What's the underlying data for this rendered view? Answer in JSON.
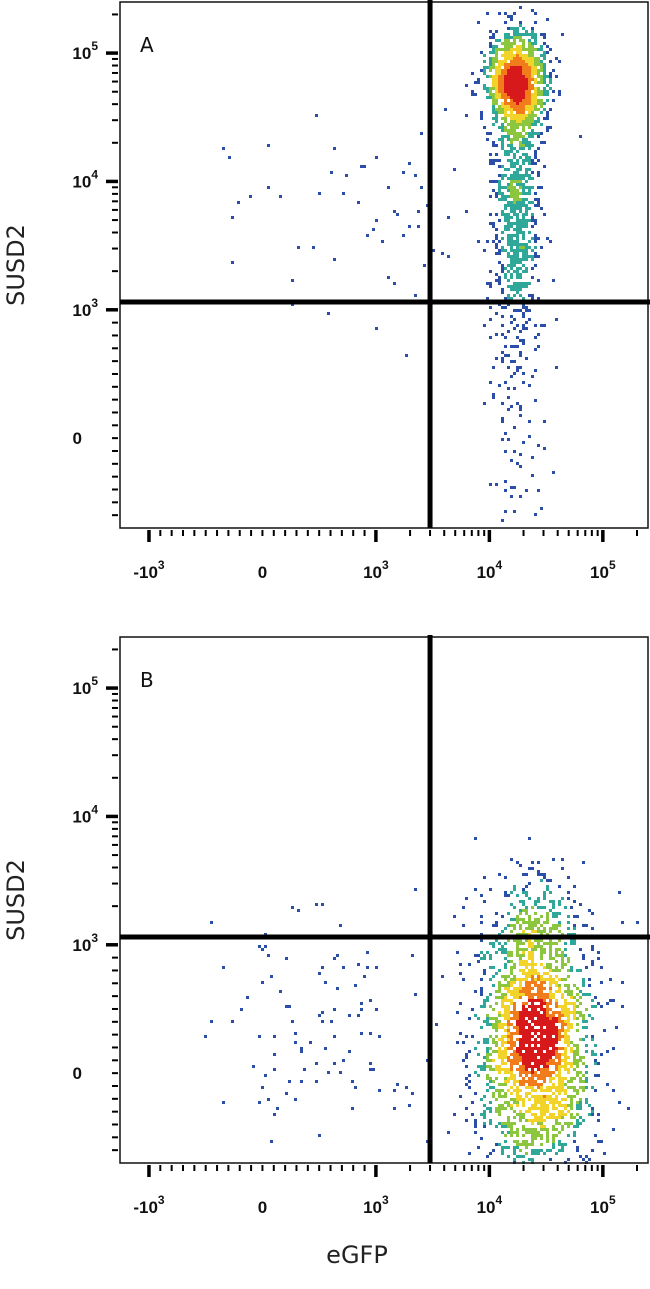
{
  "chart_data": [
    {
      "type": "scatter",
      "panel_label": "A",
      "xlabel": "",
      "ylabel": "SUSD2",
      "x_scale": "biexponential",
      "y_scale": "biexponential",
      "x_ticks": [
        {
          "base": "-10",
          "exp": "3",
          "value": -1000
        },
        {
          "base": "0",
          "exp": "",
          "value": 0
        },
        {
          "base": "10",
          "exp": "3",
          "value": 1000
        },
        {
          "base": "10",
          "exp": "4",
          "value": 10000
        },
        {
          "base": "10",
          "exp": "5",
          "value": 100000
        }
      ],
      "y_ticks": [
        {
          "base": "0",
          "exp": "",
          "value": 0
        },
        {
          "base": "10",
          "exp": "3",
          "value": 1000
        },
        {
          "base": "10",
          "exp": "4",
          "value": 10000
        },
        {
          "base": "10",
          "exp": "5",
          "value": 100000
        }
      ],
      "xlim": [
        -1800,
        250000
      ],
      "ylim": [
        -700,
        250000
      ],
      "quadrant_gate": {
        "x": 3000,
        "y": 1150
      },
      "populations": [
        {
          "x_center": 17000,
          "y_center": 60000,
          "x_spread_decades": 0.13,
          "y_spread_decades": 0.2,
          "count": 1400,
          "role": "main positive cluster"
        },
        {
          "x_center": 17000,
          "y_center": 6000,
          "x_spread_decades": 0.1,
          "y_spread_decades": 0.55,
          "count": 750,
          "role": "vertical tail"
        },
        {
          "x_center": 17000,
          "y_center": 150,
          "x_spread_decades": 0.13,
          "y_spread_decades": 0.6,
          "count": 130,
          "role": "low SUSD2 tail"
        },
        {
          "x_center": 1000,
          "y_center": 5000,
          "x_spread_decades": 0.4,
          "y_spread_decades": 0.45,
          "count": 60,
          "role": "sparse eGFP-negative events"
        }
      ]
    },
    {
      "type": "scatter",
      "panel_label": "B",
      "xlabel": "eGFP",
      "ylabel": "SUSD2",
      "x_scale": "biexponential",
      "y_scale": "biexponential",
      "x_ticks": [
        {
          "base": "-10",
          "exp": "3",
          "value": -1000
        },
        {
          "base": "0",
          "exp": "",
          "value": 0
        },
        {
          "base": "10",
          "exp": "3",
          "value": 1000
        },
        {
          "base": "10",
          "exp": "4",
          "value": 10000
        },
        {
          "base": "10",
          "exp": "5",
          "value": 100000
        }
      ],
      "y_ticks": [
        {
          "base": "0",
          "exp": "",
          "value": 0
        },
        {
          "base": "10",
          "exp": "3",
          "value": 1000
        },
        {
          "base": "10",
          "exp": "4",
          "value": 10000
        },
        {
          "base": "10",
          "exp": "5",
          "value": 100000
        }
      ],
      "xlim": [
        -1800,
        250000
      ],
      "ylim": [
        -700,
        250000
      ],
      "quadrant_gate": {
        "x": 3000,
        "y": 1150
      },
      "populations": [
        {
          "x_center": 25000,
          "y_center": 250,
          "x_spread_decades": 0.25,
          "y_spread_decades": 0.3,
          "count": 2300,
          "role": "main eGFP-positive cluster"
        },
        {
          "x_center": 24000,
          "y_center": 1500,
          "x_spread_decades": 0.25,
          "y_spread_decades": 0.25,
          "count": 180,
          "role": "upper fringe"
        },
        {
          "x_center": 500,
          "y_center": 400,
          "x_spread_decades": 0.35,
          "y_spread_decades": 0.3,
          "count": 110,
          "role": "eGFP-negative events"
        }
      ]
    }
  ]
}
